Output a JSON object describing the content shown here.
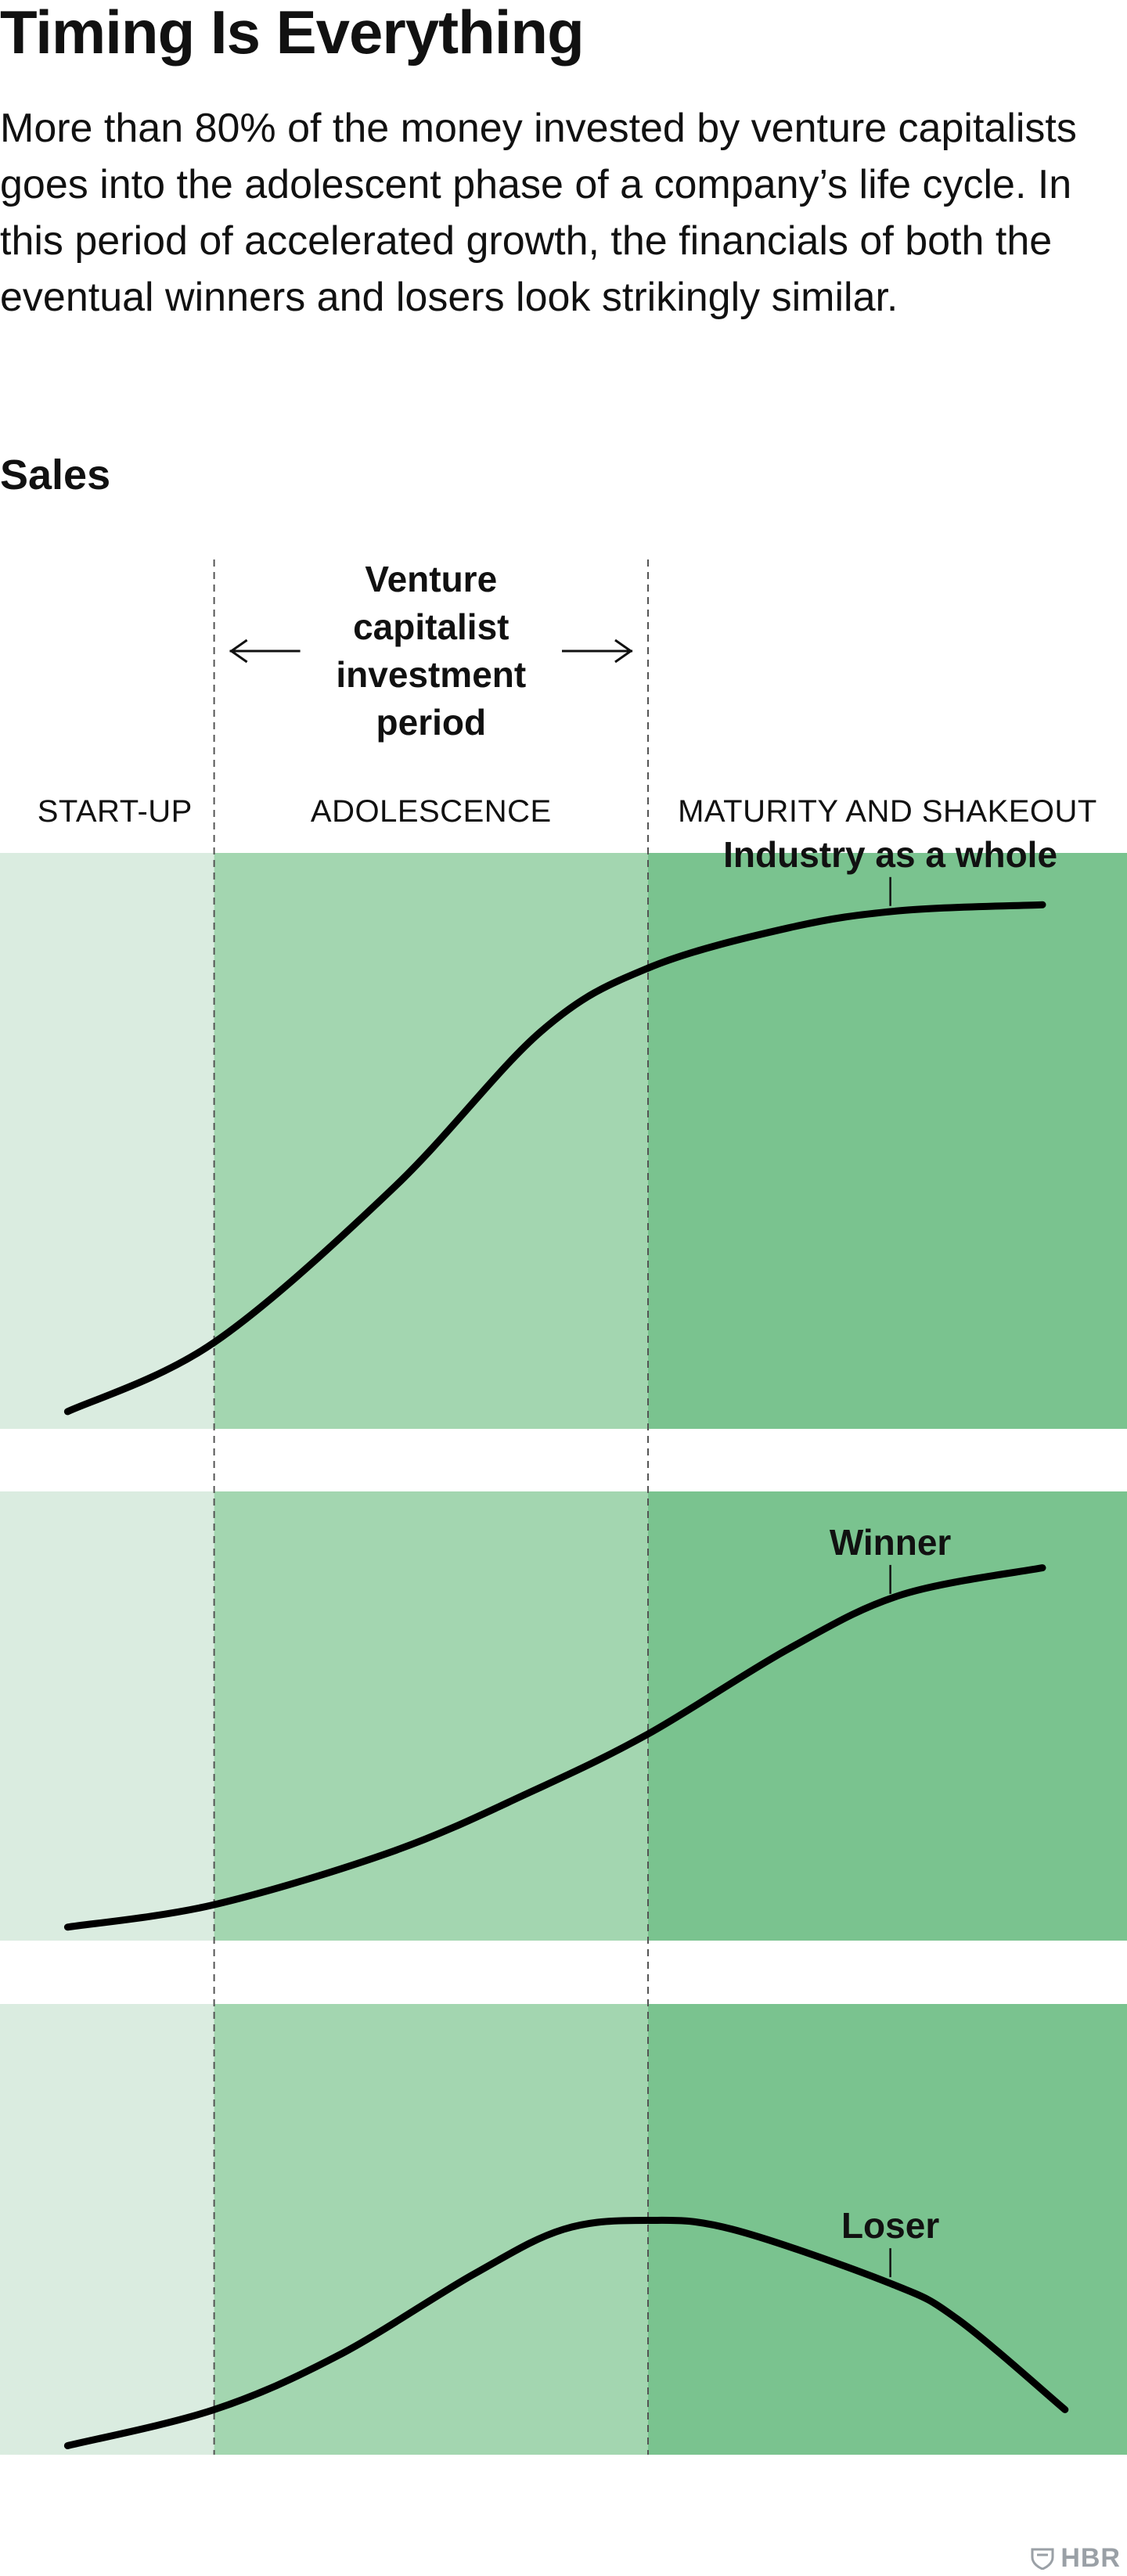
{
  "title": "Timing Is Everything",
  "subtitle": "More than 80% of the money invested by venture capitalists goes into the adolescent phase of a company’s life cycle. In this period of accelerated growth, the financials of both the eventual winners and losers look strikingly similar.",
  "y_label": "Sales",
  "investment_label": [
    "Venture",
    "capitalist",
    "investment",
    "period"
  ],
  "phases": [
    "START-UP",
    "ADOLESCENCE",
    "MATURITY AND SHAKEOUT"
  ],
  "colors": {
    "startup": "#daece0",
    "adolescence": "#a3d6b0",
    "maturity": "#7ac38f",
    "curve": "#000000",
    "divider": "#555555"
  },
  "chart_data": {
    "type": "line",
    "x_domain": [
      0,
      1
    ],
    "phase_boundaries": [
      0.19,
      0.575
    ],
    "panels": [
      {
        "series": "Industry as a whole",
        "x": [
          0.06,
          0.19,
          0.35,
          0.48,
          0.575,
          0.7,
          0.8,
          0.925
        ],
        "y": [
          0.03,
          0.15,
          0.42,
          0.69,
          0.8,
          0.87,
          0.9,
          0.91
        ],
        "label_x": 0.79
      },
      {
        "series": "Winner",
        "x": [
          0.06,
          0.19,
          0.35,
          0.47,
          0.575,
          0.7,
          0.8,
          0.925
        ],
        "y": [
          0.03,
          0.08,
          0.2,
          0.33,
          0.46,
          0.65,
          0.77,
          0.83
        ],
        "label_x": 0.79
      },
      {
        "series": "Loser",
        "x": [
          0.06,
          0.19,
          0.3,
          0.42,
          0.5,
          0.575,
          0.65,
          0.79,
          0.85,
          0.945
        ],
        "y": [
          0.02,
          0.1,
          0.22,
          0.4,
          0.5,
          0.52,
          0.5,
          0.38,
          0.3,
          0.1
        ],
        "label_x": 0.79
      }
    ]
  },
  "logo_text": "HBR"
}
